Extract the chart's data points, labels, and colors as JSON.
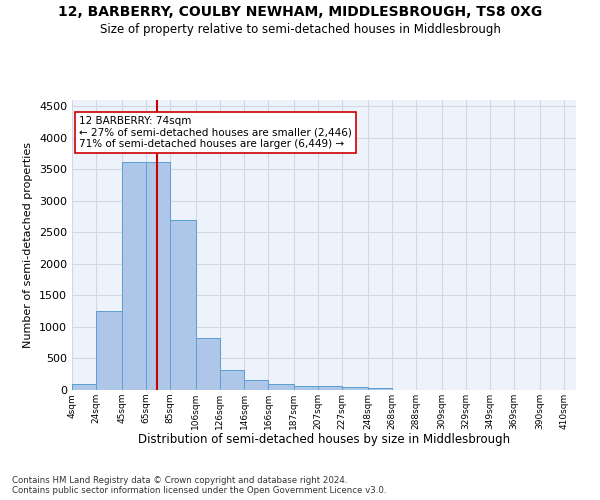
{
  "title": "12, BARBERRY, COULBY NEWHAM, MIDDLESBROUGH, TS8 0XG",
  "subtitle": "Size of property relative to semi-detached houses in Middlesbrough",
  "xlabel": "Distribution of semi-detached houses by size in Middlesbrough",
  "ylabel": "Number of semi-detached properties",
  "footer_line1": "Contains HM Land Registry data © Crown copyright and database right 2024.",
  "footer_line2": "Contains public sector information licensed under the Open Government Licence v3.0.",
  "annotation_title": "12 BARBERRY: 74sqm",
  "annotation_line1": "← 27% of semi-detached houses are smaller (2,446)",
  "annotation_line2": "71% of semi-detached houses are larger (6,449) →",
  "property_size": 74,
  "bar_left_edges": [
    4,
    24,
    45,
    65,
    85,
    106,
    126,
    146,
    166,
    187,
    207,
    227,
    248,
    268,
    288,
    309,
    329,
    349,
    369,
    390
  ],
  "bar_widths": [
    20,
    21,
    20,
    20,
    21,
    20,
    20,
    20,
    21,
    20,
    20,
    21,
    20,
    20,
    21,
    20,
    20,
    20,
    21,
    20
  ],
  "bar_heights": [
    100,
    1250,
    3620,
    3620,
    2700,
    830,
    320,
    160,
    100,
    60,
    60,
    40,
    35,
    5,
    5,
    5,
    2,
    2,
    2,
    2
  ],
  "bar_color": "#aec6e8",
  "bar_edge_color": "#5a9fd4",
  "vline_color": "#cc0000",
  "vline_x": 74,
  "ylim": [
    0,
    4600
  ],
  "yticks": [
    0,
    500,
    1000,
    1500,
    2000,
    2500,
    3000,
    3500,
    4000,
    4500
  ],
  "xtick_labels": [
    "4sqm",
    "24sqm",
    "45sqm",
    "65sqm",
    "85sqm",
    "106sqm",
    "126sqm",
    "146sqm",
    "166sqm",
    "187sqm",
    "207sqm",
    "227sqm",
    "248sqm",
    "268sqm",
    "288sqm",
    "309sqm",
    "329sqm",
    "349sqm",
    "369sqm",
    "390sqm",
    "410sqm"
  ],
  "grid_color": "#d0d8e8",
  "background_color": "#eef2fa",
  "annotation_box_color": "#ffffff",
  "annotation_box_edge": "#cc0000"
}
